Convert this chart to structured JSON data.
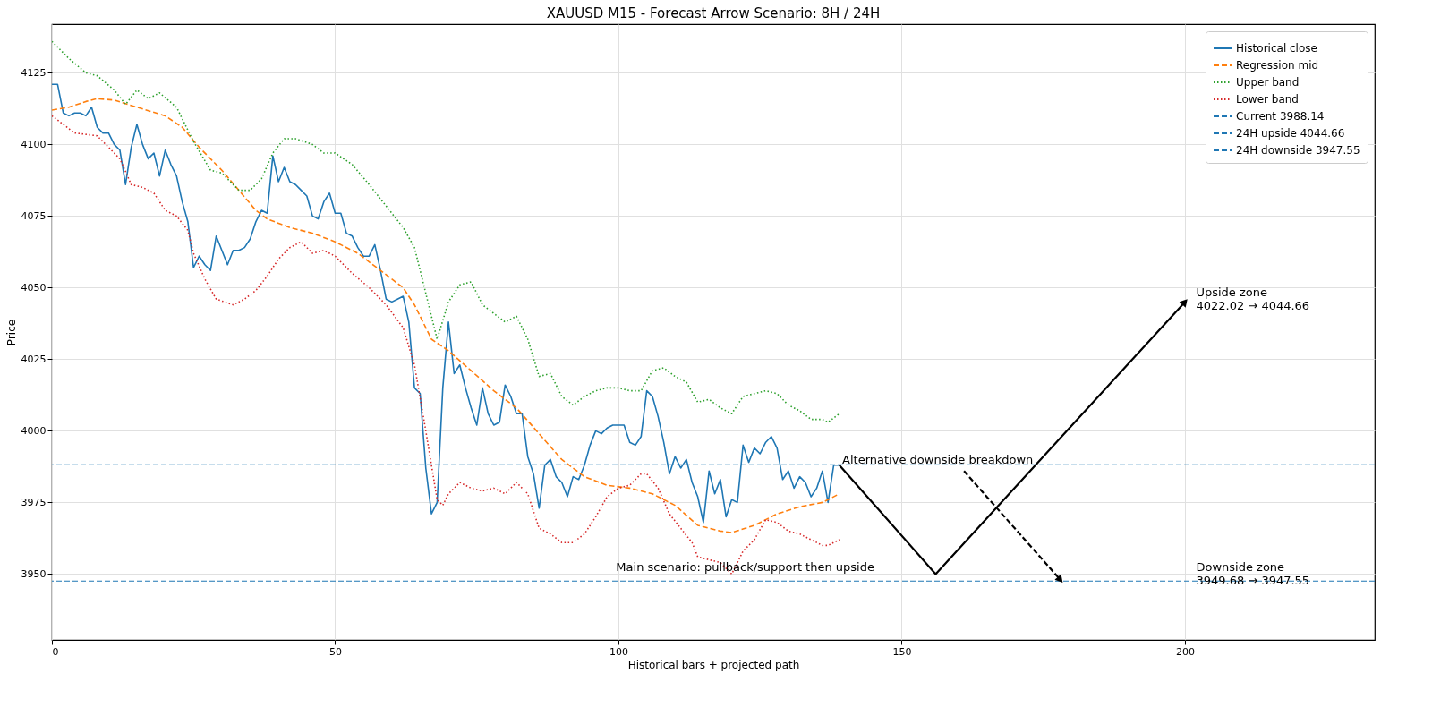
{
  "chart_data": {
    "type": "line",
    "title": "XAUUSD M15 - Forecast Arrow Scenario: 8H / 24H",
    "xlabel": "Historical bars + projected path",
    "ylabel": "Price",
    "xlim": [
      0,
      233.5
    ],
    "ylim": [
      3927,
      4142
    ],
    "xticks": [
      0,
      50,
      100,
      150,
      200
    ],
    "yticks": [
      3950,
      3975,
      4000,
      4025,
      4050,
      4075,
      4100,
      4125
    ],
    "grid": true,
    "legend": "top right",
    "series": [
      {
        "name": "Historical close",
        "color": "#1f77b4",
        "line_style": "solid",
        "x": [
          0,
          1,
          2,
          3,
          4,
          5,
          6,
          7,
          8,
          9,
          10,
          11,
          12,
          13,
          14,
          15,
          16,
          17,
          18,
          19,
          20,
          21,
          22,
          23,
          24,
          25,
          26,
          27,
          28,
          29,
          30,
          31,
          32,
          33,
          34,
          35,
          36,
          37,
          38,
          39,
          40,
          41,
          42,
          43,
          44,
          45,
          46,
          47,
          48,
          49,
          50,
          51,
          52,
          53,
          54,
          55,
          56,
          57,
          58,
          59,
          60,
          61,
          62,
          63,
          64,
          65,
          66,
          67,
          68,
          69,
          70,
          71,
          72,
          73,
          74,
          75,
          76,
          77,
          78,
          79,
          80,
          81,
          82,
          83,
          84,
          85,
          86,
          87,
          88,
          89,
          90,
          91,
          92,
          93,
          94,
          95,
          96,
          97,
          98,
          99,
          100,
          101,
          102,
          103,
          104,
          105,
          106,
          107,
          108,
          109,
          110,
          111,
          112,
          113,
          114,
          115,
          116,
          117,
          118,
          119,
          120,
          121,
          122,
          123,
          124,
          125,
          126,
          127,
          128,
          129,
          130,
          131,
          132,
          133,
          134,
          135,
          136,
          137,
          138,
          139
        ],
        "values": [
          4121,
          4121,
          4111,
          4110,
          4111,
          4111,
          4110,
          4113,
          4106,
          4104,
          4104,
          4100,
          4098,
          4086,
          4099,
          4107,
          4100,
          4095,
          4097,
          4089,
          4098,
          4093,
          4089,
          4080,
          4073,
          4057,
          4061,
          4058,
          4056,
          4068,
          4063,
          4058,
          4063,
          4063,
          4064,
          4067,
          4073,
          4077,
          4076,
          4096,
          4087,
          4092,
          4087,
          4086,
          4084,
          4082,
          4075,
          4074,
          4080,
          4083,
          4076,
          4076,
          4069,
          4068,
          4064,
          4061,
          4061,
          4065,
          4056,
          4046,
          4045,
          4046,
          4047,
          4038,
          4015,
          4013,
          3987,
          3971,
          3975,
          4015,
          4038,
          4020,
          4023,
          4015,
          4008,
          4002,
          4015,
          4006,
          4002,
          4003,
          4016,
          4012,
          4006,
          4006,
          3991,
          3985,
          3973,
          3988,
          3990,
          3984,
          3982,
          3977,
          3984,
          3983,
          3988,
          3995,
          4000,
          3999,
          4001,
          4002,
          4002,
          4002,
          3996,
          3995,
          3998,
          4014,
          4012,
          4005,
          3996,
          3985,
          3991,
          3987,
          3990,
          3982,
          3977,
          3968,
          3986,
          3978,
          3983,
          3970,
          3976,
          3975,
          3995,
          3989,
          3994,
          3992,
          3996,
          3998,
          3994,
          3983,
          3986,
          3980,
          3984,
          3982,
          3977,
          3980,
          3986,
          3975,
          3988,
          3988
        ]
      },
      {
        "name": "Regression mid",
        "color": "#ff7f0e",
        "line_style": "dashed",
        "x": [
          0,
          3,
          6,
          8,
          11,
          15,
          20,
          23,
          26,
          30,
          33,
          36,
          38,
          42,
          46,
          50,
          54,
          58,
          62,
          64,
          67,
          70,
          74,
          78,
          82,
          86,
          90,
          94,
          98,
          102,
          106,
          110,
          114,
          118,
          120,
          124,
          128,
          132,
          136,
          139
        ],
        "values": [
          4112,
          4113,
          4115,
          4116,
          4115.5,
          4113,
          4110,
          4106,
          4099,
          4091,
          4084,
          4077,
          4074,
          4071,
          4069,
          4066,
          4062,
          4056,
          4050,
          4044,
          4032,
          4028,
          4021,
          4014,
          4008,
          3999,
          3990,
          3984,
          3981,
          3980,
          3978,
          3974,
          3967,
          3965,
          3964.5,
          3967,
          3971,
          3973.5,
          3975,
          3978
        ]
      },
      {
        "name": "Upper band",
        "color": "#2ca02c",
        "line_style": "dotted",
        "x": [
          0,
          3,
          6,
          8,
          11,
          13,
          15,
          17,
          19,
          22,
          25,
          28,
          30,
          33,
          35,
          37,
          39,
          41,
          43,
          46,
          48,
          50,
          53,
          56,
          58,
          62,
          64,
          66,
          67,
          68,
          70,
          72,
          74,
          76,
          78,
          80,
          82,
          84,
          86,
          88,
          90,
          92,
          94,
          96,
          98,
          100,
          102,
          104,
          106,
          108,
          110,
          112,
          114,
          116,
          118,
          120,
          122,
          124,
          126,
          128,
          130,
          132,
          134,
          136,
          137,
          139
        ],
        "values": [
          4136,
          4130,
          4125,
          4124,
          4119,
          4114,
          4119,
          4116,
          4118,
          4113,
          4101,
          4091,
          4090,
          4084,
          4084,
          4088,
          4097,
          4102,
          4102,
          4100,
          4097,
          4097,
          4093,
          4086,
          4081,
          4071,
          4064,
          4048,
          4040,
          4032,
          4045,
          4051,
          4052,
          4044,
          4041,
          4038,
          4040,
          4032,
          4019,
          4020,
          4012,
          4009,
          4012,
          4014,
          4015,
          4015,
          4014,
          4014,
          4021,
          4022,
          4019,
          4017,
          4010,
          4011,
          4008,
          4006,
          4012,
          4013,
          4014,
          4013,
          4009,
          4007,
          4004,
          4004,
          4003,
          4006
        ]
      },
      {
        "name": "Lower band",
        "color": "#d62728",
        "line_style": "dotted",
        "x": [
          0,
          2,
          4,
          8,
          10,
          12,
          14,
          16,
          18,
          20,
          22,
          24,
          25,
          27,
          29,
          32,
          34,
          36,
          38,
          40,
          42,
          44,
          46,
          48,
          50,
          53,
          56,
          59,
          62,
          64,
          66,
          67,
          68,
          69,
          70,
          72,
          74,
          76,
          78,
          80,
          82,
          84,
          86,
          88,
          90,
          92,
          94,
          96,
          98,
          100,
          102,
          104,
          105,
          107,
          109,
          111,
          113,
          114,
          116,
          118,
          120,
          122,
          124,
          126,
          128,
          130,
          132,
          134,
          136,
          137,
          139
        ],
        "values": [
          4110,
          4107,
          4104,
          4103,
          4099,
          4095,
          4086,
          4085,
          4083,
          4077,
          4075,
          4070,
          4062,
          4053,
          4046,
          4044,
          4046,
          4049,
          4054,
          4060,
          4064,
          4066,
          4062,
          4063,
          4061,
          4055,
          4050,
          4044,
          4036,
          4023,
          4000,
          3988,
          3976,
          3974,
          3978,
          3982,
          3980,
          3979,
          3980,
          3978,
          3982,
          3978,
          3966,
          3964,
          3961,
          3961,
          3964,
          3970,
          3977,
          3980,
          3981,
          3985,
          3985,
          3980,
          3971,
          3966,
          3961,
          3956,
          3955,
          3954,
          3950,
          3958,
          3962,
          3969,
          3968,
          3965,
          3964,
          3962,
          3960,
          3960,
          3962
        ]
      },
      {
        "color": "#000000",
        "line_style": "solid",
        "x": [
          139,
          156,
          200
        ],
        "values": [
          3988,
          3950,
          4045
        ]
      },
      {
        "color": "#000000",
        "line_style": "dashed",
        "x": [
          161,
          178
        ],
        "values": [
          3986,
          3948
        ]
      }
    ],
    "ref_lines": [
      {
        "axis": "y",
        "value": 3988.14,
        "label": "Current 3988.14",
        "color": "#1f77b4",
        "line_style": "dashed"
      },
      {
        "axis": "y",
        "value": 4044.66,
        "label": "24H upside 4044.66",
        "color": "#1f77b4",
        "line_style": "dashed"
      },
      {
        "axis": "y",
        "value": 3947.55,
        "label": "24H downside 3947.55",
        "color": "#1f77b4",
        "line_style": "dashed"
      }
    ],
    "annotations": [
      "Alternative downside breakdown",
      "Main scenario: pullback/support then upside",
      "Upside zone\n4022.02 → 4044.66",
      "Downside zone\n3949.68 → 3947.55"
    ]
  }
}
